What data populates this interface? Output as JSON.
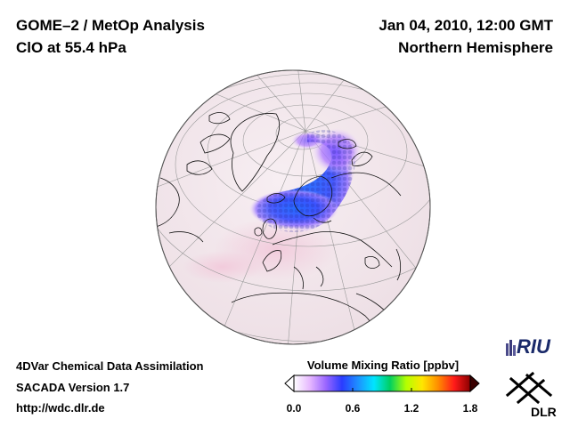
{
  "header": {
    "line1": "GOME–2 / MetOp Analysis",
    "line2": "ClO at 55.4 hPa",
    "date": "Jan 04, 2010, 12:00 GMT",
    "region": "Northern Hemisphere"
  },
  "footer": {
    "line1": "4DVar Chemical Data Assimilation",
    "line2": "SACADA Version 1.7",
    "line3": "http://wdc.dlr.de"
  },
  "colorbar": {
    "title": "Volume Mixing Ratio [ppbv]",
    "min": 0.0,
    "max": 1.8,
    "ticks": [
      {
        "value": 0.0,
        "label": "0.0"
      },
      {
        "value": 0.6,
        "label": "0.6"
      },
      {
        "value": 1.2,
        "label": "1.2"
      },
      {
        "value": 1.8,
        "label": "1.8"
      }
    ],
    "colors": [
      "#ffffff",
      "#e6b8ff",
      "#9a66ff",
      "#2a3cff",
      "#1e90ff",
      "#00e5ff",
      "#00d060",
      "#b4ff00",
      "#ffe600",
      "#ff8c00",
      "#ff1a1a",
      "#8b0000"
    ]
  },
  "logos": {
    "riu": "RIU",
    "dlr": "DLR"
  }
}
